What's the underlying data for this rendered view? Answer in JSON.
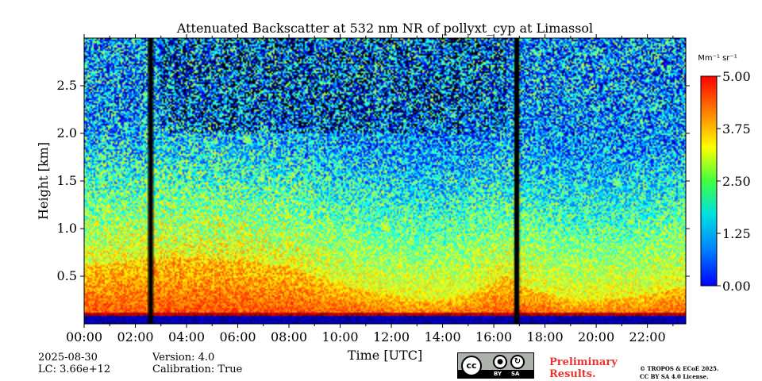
{
  "chart_data": {
    "type": "heatmap",
    "title": "Attenuated Backscatter at 532 nm NR of pollyxt_cyp at Limassol",
    "xlabel": "Time [UTC]",
    "ylabel": "Height [km]",
    "x_ticks": [
      "00:00",
      "02:00",
      "04:00",
      "06:00",
      "08:00",
      "10:00",
      "12:00",
      "14:00",
      "16:00",
      "18:00",
      "20:00",
      "22:00"
    ],
    "x_tick_hours": [
      0,
      2,
      4,
      6,
      8,
      10,
      12,
      14,
      16,
      18,
      20,
      22
    ],
    "xlim_hours": [
      0,
      23.5
    ],
    "y_ticks": [
      "0.5",
      "1.0",
      "1.5",
      "2.0",
      "2.5"
    ],
    "y_tick_values": [
      0.5,
      1.0,
      1.5,
      2.0,
      2.5
    ],
    "ylim_km": [
      0,
      3.0
    ],
    "colorbar": {
      "unit": "Mm⁻¹ sr⁻¹",
      "ticks": [
        "0.00",
        "1.25",
        "2.50",
        "3.75",
        "5.00"
      ],
      "tick_values": [
        0,
        1.25,
        2.5,
        3.75,
        5.0
      ],
      "range": [
        0,
        5.0
      ],
      "colormap": "jet"
    },
    "data_gaps_hours": [
      [
        2.5,
        2.7
      ],
      [
        16.8,
        17.0
      ]
    ],
    "dense_layer_top_km": [
      0.6,
      0.7,
      0.7,
      0.6,
      0.4,
      0.3,
      0.25,
      0.25,
      0.3,
      0.5,
      0.4,
      0.25,
      0.25,
      0.3,
      0.4
    ],
    "dense_layer_hours": [
      0,
      3,
      5,
      8,
      10,
      12,
      13,
      14,
      15,
      16.5,
      17,
      19,
      20,
      22,
      23.5
    ]
  },
  "footer": {
    "date": "2025-08-30",
    "lc": "LC: 3.66e+12",
    "version": "Version: 4.0",
    "calibration": "Calibration: True",
    "preliminary_line1": "Preliminary",
    "preliminary_line2": "Results.",
    "copyright_line1": "© TROPOS & ECoE 2025.",
    "copyright_line2": "CC BY SA 4.0 License.",
    "cc_left": "cc",
    "cc_by": "BY",
    "cc_sa": "SA"
  },
  "colors": {
    "prelim": "#e8342e"
  }
}
